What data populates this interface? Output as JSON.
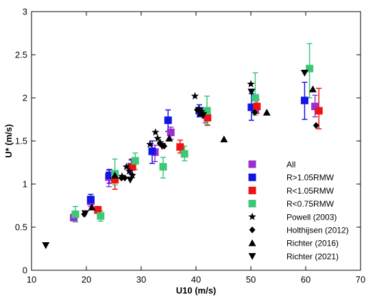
{
  "chart_data": {
    "type": "scatter",
    "xlabel": "U10 (m/s)",
    "ylabel": "U* (m/s)",
    "xlim": [
      10,
      70
    ],
    "ylim": [
      0,
      3
    ],
    "xticks": [
      10,
      20,
      30,
      40,
      50,
      60,
      70
    ],
    "yticks": [
      0,
      0.5,
      1,
      1.5,
      2,
      2.5,
      3
    ],
    "xtick_labels": [
      "10",
      "20",
      "30",
      "40",
      "50",
      "60",
      "70"
    ],
    "ytick_labels": [
      "0",
      "0.5",
      "1",
      "1.5",
      "2",
      "2.5",
      "3"
    ],
    "grid": false,
    "legend_position": "bottom-right",
    "series": [
      {
        "name": "All",
        "marker": "square",
        "color": "#9b30d0",
        "points": [
          {
            "x": 17.7,
            "y": 0.61
          },
          {
            "x": 20.8,
            "y": 0.8
          },
          {
            "x": 24.1,
            "y": 1.08
          },
          {
            "x": 28.3,
            "y": 1.2
          },
          {
            "x": 32.5,
            "y": 1.37
          },
          {
            "x": 35.4,
            "y": 1.6
          },
          {
            "x": 41.7,
            "y": 1.8
          },
          {
            "x": 50.8,
            "y": 1.87
          },
          {
            "x": 61.7,
            "y": 1.9
          }
        ]
      },
      {
        "name": "R>1.05RMW",
        "marker": "square",
        "color": "#1414e6",
        "points": [
          {
            "x": 20.8,
            "y": 0.82
          },
          {
            "x": 24.2,
            "y": 1.1
          },
          {
            "x": 28.2,
            "y": 1.2
          },
          {
            "x": 32.0,
            "y": 1.38
          },
          {
            "x": 34.9,
            "y": 1.74
          },
          {
            "x": 40.6,
            "y": 1.85
          },
          {
            "x": 50.1,
            "y": 1.89
          },
          {
            "x": 59.8,
            "y": 1.97
          }
        ]
      },
      {
        "name": "R<1.05RMW",
        "marker": "square",
        "color": "#ee1414",
        "points": [
          {
            "x": 22.1,
            "y": 0.7
          },
          {
            "x": 25.2,
            "y": 1.05
          },
          {
            "x": 28.4,
            "y": 1.2
          },
          {
            "x": 37.1,
            "y": 1.43
          },
          {
            "x": 42.1,
            "y": 1.77
          },
          {
            "x": 51.1,
            "y": 1.9
          },
          {
            "x": 62.4,
            "y": 1.85
          }
        ]
      },
      {
        "name": "R<0.75RMW",
        "marker": "square",
        "color": "#3cc878",
        "points": [
          {
            "x": 18.0,
            "y": 0.65
          },
          {
            "x": 22.6,
            "y": 0.63
          },
          {
            "x": 25.2,
            "y": 1.12
          },
          {
            "x": 28.9,
            "y": 1.27
          },
          {
            "x": 34.0,
            "y": 1.2
          },
          {
            "x": 37.9,
            "y": 1.35
          },
          {
            "x": 42.0,
            "y": 1.85
          },
          {
            "x": 50.8,
            "y": 2.0
          },
          {
            "x": 60.7,
            "y": 2.34
          }
        ]
      },
      {
        "name": "Powell (2003)",
        "marker": "star",
        "color": "#000000",
        "points": [
          {
            "x": 26.5,
            "y": 1.09
          },
          {
            "x": 27.3,
            "y": 1.2
          },
          {
            "x": 27.8,
            "y": 1.15
          },
          {
            "x": 28.4,
            "y": 1.1
          },
          {
            "x": 31.6,
            "y": 1.46
          },
          {
            "x": 32.6,
            "y": 1.6
          },
          {
            "x": 33.0,
            "y": 1.53
          },
          {
            "x": 33.5,
            "y": 1.48
          },
          {
            "x": 39.8,
            "y": 2.02
          },
          {
            "x": 40.5,
            "y": 1.87
          },
          {
            "x": 41.0,
            "y": 1.84
          },
          {
            "x": 50.0,
            "y": 2.16
          }
        ]
      },
      {
        "name": "Holthijsen (2012)",
        "marker": "diamond",
        "color": "#000000",
        "points": [
          {
            "x": 19.6,
            "y": 0.65
          },
          {
            "x": 26.4,
            "y": 1.07
          },
          {
            "x": 27.0,
            "y": 1.07
          },
          {
            "x": 33.4,
            "y": 1.47
          },
          {
            "x": 34.2,
            "y": 1.44
          },
          {
            "x": 40.2,
            "y": 1.86
          },
          {
            "x": 50.7,
            "y": 1.83
          },
          {
            "x": 61.9,
            "y": 1.68
          }
        ]
      },
      {
        "name": "Richter (2016)",
        "marker": "triangle-up",
        "color": "#000000",
        "points": [
          {
            "x": 21.0,
            "y": 0.73
          },
          {
            "x": 25.2,
            "y": 1.1
          },
          {
            "x": 35.1,
            "y": 1.53
          },
          {
            "x": 40.8,
            "y": 1.82
          },
          {
            "x": 45.1,
            "y": 1.52
          },
          {
            "x": 52.9,
            "y": 1.83
          },
          {
            "x": 61.3,
            "y": 2.1
          }
        ]
      },
      {
        "name": "Richter (2021)",
        "marker": "triangle-down",
        "color": "#000000",
        "points": [
          {
            "x": 12.6,
            "y": 0.29
          },
          {
            "x": 19.8,
            "y": 0.66
          },
          {
            "x": 28.0,
            "y": 1.05
          },
          {
            "x": 33.8,
            "y": 1.44
          },
          {
            "x": 41.3,
            "y": 1.8
          },
          {
            "x": 50.1,
            "y": 2.07
          },
          {
            "x": 59.8,
            "y": 2.29
          }
        ]
      }
    ],
    "error_bars": [
      {
        "x": 17.7,
        "y": 0.61,
        "low": 0.58,
        "high": 0.65,
        "color": "#9b30d0"
      },
      {
        "x": 20.8,
        "y": 0.8,
        "low": 0.74,
        "high": 0.84,
        "color": "#9b30d0"
      },
      {
        "x": 24.1,
        "y": 1.08,
        "low": 0.97,
        "high": 1.16,
        "color": "#9b30d0"
      },
      {
        "x": 28.3,
        "y": 1.2,
        "low": 1.08,
        "high": 1.29,
        "color": "#9b30d0"
      },
      {
        "x": 32.5,
        "y": 1.37,
        "low": 1.26,
        "high": 1.45,
        "color": "#9b30d0"
      },
      {
        "x": 35.4,
        "y": 1.6,
        "low": 1.52,
        "high": 1.66,
        "color": "#9b30d0"
      },
      {
        "x": 41.7,
        "y": 1.8,
        "low": 1.71,
        "high": 1.88,
        "color": "#9b30d0"
      },
      {
        "x": 61.7,
        "y": 1.9,
        "low": 1.78,
        "high": 2.03,
        "color": "#9b30d0"
      },
      {
        "x": 20.8,
        "y": 0.82,
        "low": 0.76,
        "high": 0.88,
        "color": "#1414e6"
      },
      {
        "x": 24.2,
        "y": 1.1,
        "low": 1.01,
        "high": 1.17,
        "color": "#1414e6"
      },
      {
        "x": 28.2,
        "y": 1.2,
        "low": 1.12,
        "high": 1.28,
        "color": "#1414e6"
      },
      {
        "x": 32.0,
        "y": 1.38,
        "low": 1.24,
        "high": 1.5,
        "color": "#1414e6"
      },
      {
        "x": 34.9,
        "y": 1.74,
        "low": 1.61,
        "high": 1.86,
        "color": "#1414e6"
      },
      {
        "x": 40.6,
        "y": 1.85,
        "low": 1.78,
        "high": 1.92,
        "color": "#1414e6"
      },
      {
        "x": 50.1,
        "y": 1.89,
        "low": 1.74,
        "high": 2.05,
        "color": "#1414e6"
      },
      {
        "x": 59.8,
        "y": 1.97,
        "low": 1.75,
        "high": 2.18,
        "color": "#1414e6"
      },
      {
        "x": 22.1,
        "y": 0.7,
        "low": 0.66,
        "high": 0.74,
        "color": "#ee1414"
      },
      {
        "x": 25.2,
        "y": 1.05,
        "low": 0.94,
        "high": 1.15,
        "color": "#ee1414"
      },
      {
        "x": 28.4,
        "y": 1.2,
        "low": 1.11,
        "high": 1.29,
        "color": "#ee1414"
      },
      {
        "x": 37.1,
        "y": 1.43,
        "low": 1.36,
        "high": 1.51,
        "color": "#ee1414"
      },
      {
        "x": 42.1,
        "y": 1.77,
        "low": 1.68,
        "high": 1.86,
        "color": "#ee1414"
      },
      {
        "x": 51.1,
        "y": 1.9,
        "low": 1.82,
        "high": 1.98,
        "color": "#ee1414"
      },
      {
        "x": 62.4,
        "y": 1.85,
        "low": 1.64,
        "high": 2.11,
        "color": "#ee1414"
      },
      {
        "x": 18.0,
        "y": 0.65,
        "low": 0.56,
        "high": 0.74,
        "color": "#3cc878"
      },
      {
        "x": 22.6,
        "y": 0.63,
        "low": 0.57,
        "high": 0.69,
        "color": "#3cc878"
      },
      {
        "x": 25.2,
        "y": 1.12,
        "low": 0.99,
        "high": 1.29,
        "color": "#3cc878"
      },
      {
        "x": 28.9,
        "y": 1.27,
        "low": 1.17,
        "high": 1.36,
        "color": "#3cc878"
      },
      {
        "x": 34.0,
        "y": 1.2,
        "low": 1.07,
        "high": 1.31,
        "color": "#3cc878"
      },
      {
        "x": 37.9,
        "y": 1.35,
        "low": 1.27,
        "high": 1.44,
        "color": "#3cc878"
      },
      {
        "x": 42.0,
        "y": 1.85,
        "low": 1.69,
        "high": 2.02,
        "color": "#3cc878"
      },
      {
        "x": 50.8,
        "y": 2.0,
        "low": 1.8,
        "high": 2.29,
        "color": "#3cc878"
      },
      {
        "x": 60.7,
        "y": 2.34,
        "low": 2.0,
        "high": 2.63,
        "color": "#3cc878"
      }
    ]
  }
}
